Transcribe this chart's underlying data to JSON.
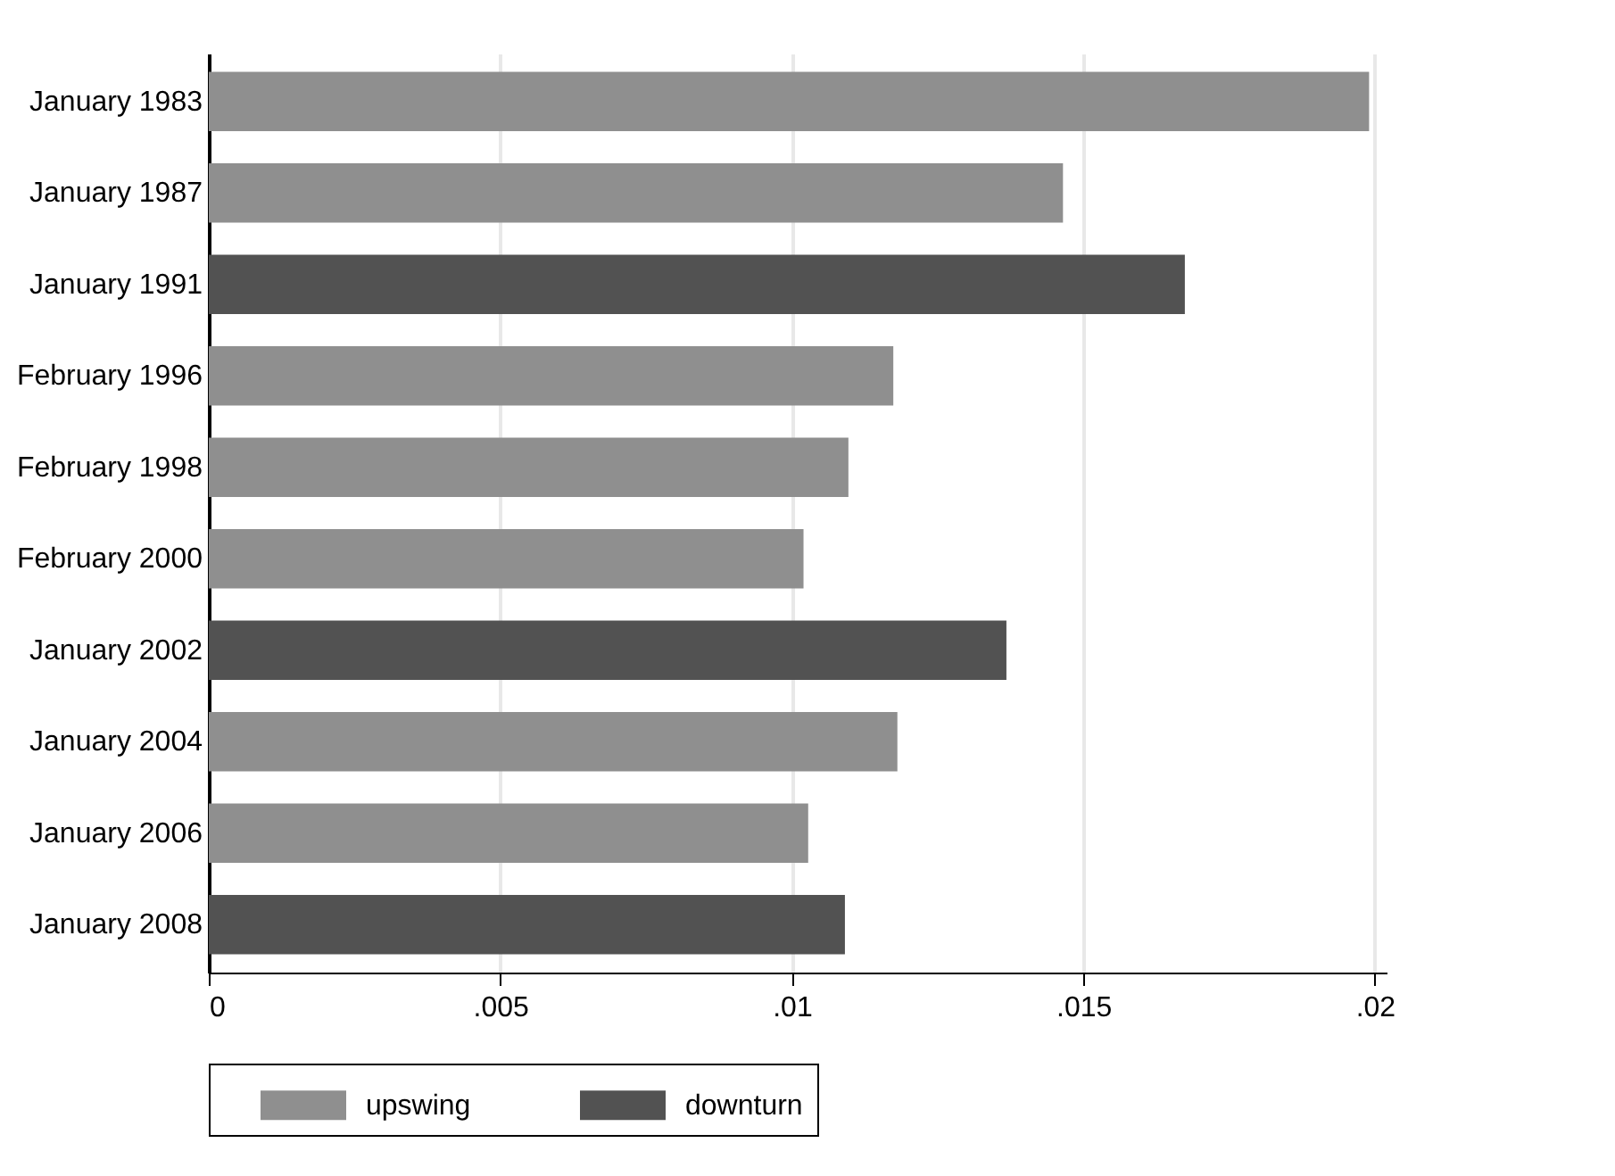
{
  "chart_data": {
    "type": "bar",
    "orientation": "horizontal",
    "categories": [
      "January 1983",
      "January 1987",
      "January 1991",
      "February 1996",
      "February 1998",
      "February 2000",
      "January 2002",
      "January 2004",
      "January 2006",
      "January 2008"
    ],
    "series": [
      {
        "name": "upswing",
        "color": "#8f8f8f",
        "values": [
          0.0199,
          0.01465,
          null,
          0.01174,
          0.01097,
          0.0102,
          null,
          0.01181,
          0.01028,
          null
        ]
      },
      {
        "name": "downturn",
        "color": "#525252",
        "values": [
          null,
          null,
          0.01674,
          null,
          null,
          null,
          0.01368,
          null,
          null,
          0.01091
        ]
      }
    ],
    "xlim": [
      0,
      0.0202
    ],
    "xticks": [
      {
        "value": 0,
        "label": "0"
      },
      {
        "value": 0.005,
        "label": ".005"
      },
      {
        "value": 0.01,
        "label": ".01"
      },
      {
        "value": 0.015,
        "label": ".015"
      },
      {
        "value": 0.02,
        "label": ".02"
      }
    ],
    "grid": "x",
    "legend": "bottom"
  }
}
